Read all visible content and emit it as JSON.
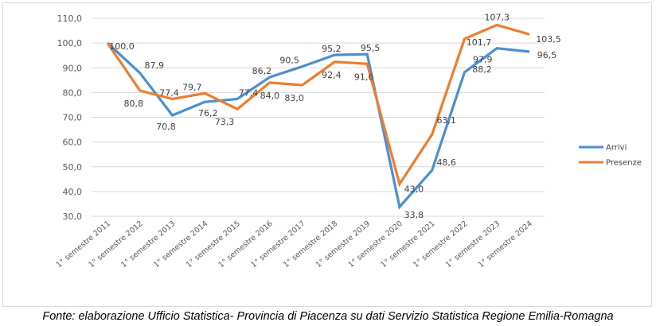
{
  "chart_data": {
    "type": "line",
    "title": "",
    "xlabel": "",
    "ylabel": "",
    "categories": [
      "1° semestre 2011",
      "1° semestre 2012",
      "1° semestre 2013",
      "1° semestre 2014",
      "1° semestre 2015",
      "1° semestre 2016",
      "1° semestre 2017",
      "1° semestre 2018",
      "1° semestre 2019",
      "1° semestre 2020",
      "1° semestre 2021",
      "1° semestre 2022",
      "1° semestre 2023",
      "1° semestre 2024"
    ],
    "series": [
      {
        "name": "Arrivi",
        "color": "#4a8fd1",
        "values": [
          100.0,
          87.9,
          70.8,
          76.2,
          77.4,
          86.2,
          90.5,
          95.2,
          95.5,
          33.8,
          48.6,
          88.2,
          97.9,
          96.5
        ]
      },
      {
        "name": "Presenze",
        "color": "#ed7d31",
        "values": [
          100.0,
          80.8,
          77.4,
          79.7,
          73.3,
          84.0,
          83.0,
          92.4,
          91.6,
          43.0,
          63.1,
          101.7,
          107.3,
          103.5
        ]
      }
    ],
    "data_labels": [
      {
        "series": "Arrivi",
        "index": 0,
        "text": "100,0"
      },
      {
        "series": "Arrivi",
        "index": 1,
        "text": "87,9"
      },
      {
        "series": "Arrivi",
        "index": 2,
        "text": "70,8"
      },
      {
        "series": "Arrivi",
        "index": 3,
        "text": "76,2"
      },
      {
        "series": "Arrivi",
        "index": 4,
        "text": "77,4"
      },
      {
        "series": "Arrivi",
        "index": 5,
        "text": "86,2"
      },
      {
        "series": "Arrivi",
        "index": 6,
        "text": "90,5"
      },
      {
        "series": "Arrivi",
        "index": 7,
        "text": "95,2"
      },
      {
        "series": "Arrivi",
        "index": 8,
        "text": "95,5"
      },
      {
        "series": "Arrivi",
        "index": 9,
        "text": "33,8"
      },
      {
        "series": "Arrivi",
        "index": 10,
        "text": "48,6"
      },
      {
        "series": "Arrivi",
        "index": 11,
        "text": "88,2"
      },
      {
        "series": "Arrivi",
        "index": 12,
        "text": "97,9"
      },
      {
        "series": "Arrivi",
        "index": 13,
        "text": "96,5"
      },
      {
        "series": "Presenze",
        "index": 1,
        "text": "80,8"
      },
      {
        "series": "Presenze",
        "index": 2,
        "text": "77,4"
      },
      {
        "series": "Presenze",
        "index": 3,
        "text": "79,7"
      },
      {
        "series": "Presenze",
        "index": 4,
        "text": "73,3"
      },
      {
        "series": "Presenze",
        "index": 5,
        "text": "84,0"
      },
      {
        "series": "Presenze",
        "index": 6,
        "text": "83,0"
      },
      {
        "series": "Presenze",
        "index": 7,
        "text": "92,4"
      },
      {
        "series": "Presenze",
        "index": 8,
        "text": "91,6"
      },
      {
        "series": "Presenze",
        "index": 9,
        "text": "43,0"
      },
      {
        "series": "Presenze",
        "index": 10,
        "text": "63,1"
      },
      {
        "series": "Presenze",
        "index": 11,
        "text": "101,7"
      },
      {
        "series": "Presenze",
        "index": 12,
        "text": "107,3"
      },
      {
        "series": "Presenze",
        "index": 13,
        "text": "103,5"
      }
    ],
    "ylim": [
      30,
      110
    ],
    "yticks": [
      "30,0",
      "40,0",
      "50,0",
      "60,0",
      "70,0",
      "80,0",
      "90,0",
      "100,0",
      "110,0"
    ],
    "grid": true,
    "legend": {
      "position": "right",
      "entries": [
        "Arrivi",
        "Presenze"
      ]
    }
  },
  "caption": "Fonte: elaborazione Ufficio Statistica- Provincia di Piacenza su dati Servizio Statistica Regione Emilia-Romagna"
}
